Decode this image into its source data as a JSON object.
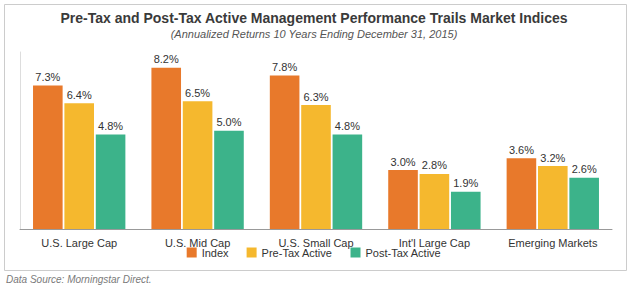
{
  "chart_data": {
    "type": "bar",
    "title": "Pre-Tax and Post-Tax Active Management Performance Trails Market Indices",
    "subtitle": "(Annualized Returns 10 Years Ending December 31, 2015)",
    "annotations": [
      "Data Source: Morningstar Direct."
    ],
    "categories": [
      "U.S. Large Cap",
      "U.S. Mid Cap",
      "U.S. Small Cap",
      "Int'l Large Cap",
      "Emerging Markets"
    ],
    "series": [
      {
        "name": "Index",
        "color": "#e8792b",
        "values": [
          7.3,
          8.2,
          7.8,
          3.0,
          3.6
        ],
        "value_labels": [
          "7.3%",
          "8.2%",
          "7.8%",
          "3.0%",
          "3.6%"
        ]
      },
      {
        "name": "Pre-Tax Active",
        "color": "#f5b82e",
        "values": [
          6.4,
          6.5,
          6.3,
          2.8,
          3.2
        ],
        "value_labels": [
          "6.4%",
          "6.5%",
          "6.3%",
          "2.8%",
          "3.2%"
        ]
      },
      {
        "name": "Post-Tax Active",
        "color": "#3cb38a",
        "values": [
          4.8,
          5.0,
          4.8,
          1.9,
          2.6
        ],
        "value_labels": [
          "4.8%",
          "5.0%",
          "4.8%",
          "1.9%",
          "2.6%"
        ]
      }
    ],
    "ylim": [
      0,
      9
    ],
    "data_labels": true,
    "tick_labels": "x",
    "legend": "bottom",
    "grid": false
  }
}
